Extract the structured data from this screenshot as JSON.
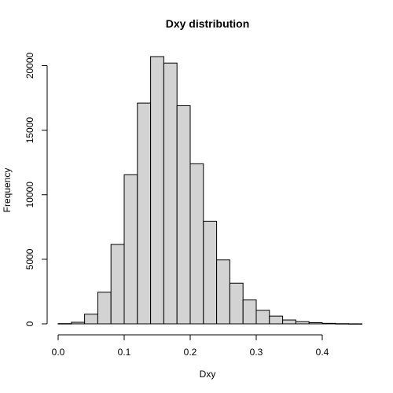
{
  "chart_data": {
    "type": "bar",
    "subtype": "histogram",
    "title": "Dxy distribution",
    "xlabel": "Dxy",
    "ylabel": "Frequency",
    "xlim": [
      0,
      0.45
    ],
    "ylim": [
      0,
      20700
    ],
    "x_ticks": [
      0.0,
      0.1,
      0.2,
      0.3,
      0.4
    ],
    "x_tick_labels": [
      "0.0",
      "0.1",
      "0.2",
      "0.3",
      "0.4"
    ],
    "y_ticks": [
      0,
      5000,
      10000,
      15000,
      20000
    ],
    "y_tick_labels": [
      "0",
      "5000",
      "10000",
      "15000",
      "20000"
    ],
    "bin_width": 0.02,
    "bin_starts": [
      0.0,
      0.02,
      0.04,
      0.06,
      0.08,
      0.1,
      0.12,
      0.14,
      0.16,
      0.18,
      0.2,
      0.22,
      0.24,
      0.26,
      0.28,
      0.3,
      0.32,
      0.34,
      0.36,
      0.38,
      0.4,
      0.42,
      0.44
    ],
    "values": [
      20,
      120,
      750,
      2450,
      6150,
      11550,
      17100,
      20700,
      20200,
      16900,
      12400,
      7950,
      4950,
      3150,
      1850,
      1050,
      600,
      300,
      170,
      90,
      40,
      15,
      5
    ],
    "bar_fill": "#d3d3d3",
    "bar_stroke": "#000000",
    "grid": false,
    "legend": "none"
  }
}
